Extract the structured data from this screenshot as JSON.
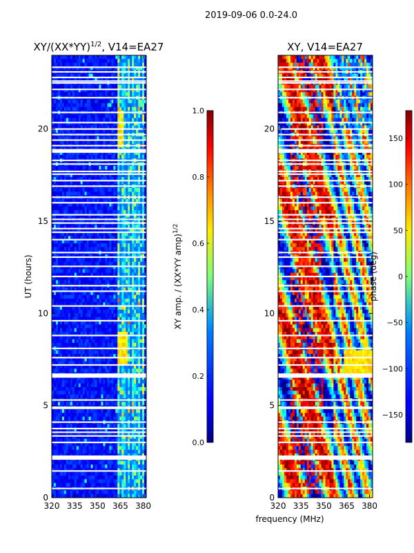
{
  "figure": {
    "suptitle": "2019-09-06 0.0-24.0"
  },
  "chart_data": [
    {
      "type": "heatmap",
      "title": "XY/(XX*YY)",
      "title_exponent": "1/2",
      "title_suffix": ", V14=EA27",
      "xlabel": "",
      "ylabel": "UT (hours)",
      "xlim": [
        320,
        382
      ],
      "ylim": [
        0,
        24
      ],
      "xticks": [
        320,
        335,
        350,
        365,
        380
      ],
      "yticks": [
        0,
        5,
        10,
        15,
        20
      ],
      "colormap": "jet",
      "colorbar": {
        "label": "XY amp. / (XX*YY amp)",
        "label_exponent": "1/2",
        "range": [
          0.0,
          1.0
        ],
        "ticks": [
          "0.0",
          "0.2",
          "0.4",
          "0.6",
          "0.8",
          "1.0"
        ],
        "tick_values": [
          0.0,
          0.2,
          0.4,
          0.6,
          0.8,
          1.0
        ]
      },
      "description_bands": {
        "background_level": 0.12,
        "bright_band_MHz": [
          363,
          381
        ],
        "peak_level": 0.65
      }
    },
    {
      "type": "heatmap",
      "title": "XY, V14=EA27",
      "xlabel": "frequency (MHz)",
      "ylabel": "",
      "xlim": [
        320,
        382
      ],
      "ylim": [
        0,
        24
      ],
      "xticks": [
        320,
        335,
        350,
        365,
        380
      ],
      "yticks": [
        0,
        5,
        10,
        15,
        20
      ],
      "colormap": "jet",
      "colorbar": {
        "label": "phase (deg)",
        "range": [
          -180,
          180
        ],
        "ticks": [
          "150",
          "100",
          "50",
          "0",
          "−50",
          "−100",
          "−150"
        ],
        "tick_values": [
          150,
          100,
          50,
          0,
          -50,
          -100,
          -150
        ]
      }
    }
  ],
  "flagged_hours": [
    0.5,
    1.45,
    2.1,
    2.25,
    3.0,
    3.35,
    3.55,
    3.75,
    4.1,
    4.85,
    5.3,
    6.55,
    6.7,
    7.2,
    7.6,
    8.1,
    8.8,
    9.6,
    10.4,
    11.2,
    11.5,
    12.0,
    12.55,
    13.05,
    13.3,
    14.0,
    14.4,
    14.6,
    14.9,
    15.1,
    15.35,
    16.0,
    16.3,
    16.9,
    17.2,
    17.55,
    17.7,
    18.1,
    18.3,
    18.75,
    18.85,
    19.1,
    19.4,
    19.7,
    20.0,
    20.35,
    20.9,
    21.7,
    22.15,
    22.5,
    22.6,
    22.8,
    23.1,
    23.35
  ]
}
